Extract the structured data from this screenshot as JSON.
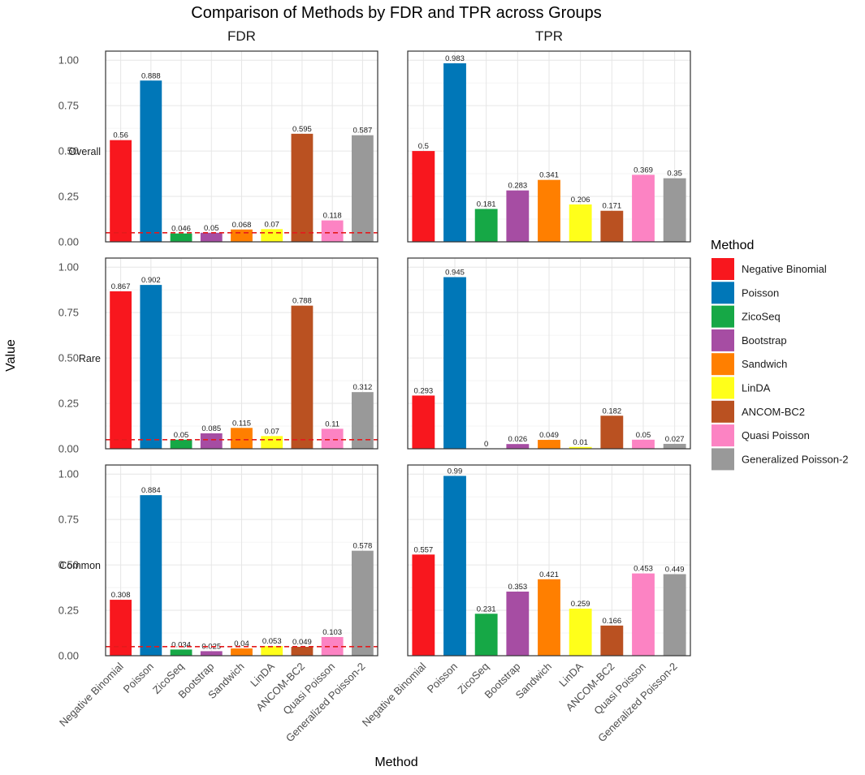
{
  "chart_data": {
    "type": "bar",
    "title": "Comparison of Methods by FDR and TPR across Groups",
    "xlabel": "Method",
    "ylabel": "Value",
    "ylim": [
      0,
      1.05
    ],
    "yticks": [
      "0.00",
      "0.25",
      "0.50",
      "0.75",
      "1.00"
    ],
    "ytick_values": [
      0,
      0.25,
      0.5,
      0.75,
      1.0
    ],
    "reference_line": 0.05,
    "columns": [
      "FDR",
      "TPR"
    ],
    "rows": [
      "Overall",
      "Rare",
      "Common"
    ],
    "categories": [
      "Negative Binomial",
      "Poisson",
      "ZicoSeq",
      "Bootstrap",
      "Sandwich",
      "LinDA",
      "ANCOM-BC2",
      "Quasi Poisson",
      "Generalized Poisson-2"
    ],
    "colors": [
      "#F8171E",
      "#0077B8",
      "#16A846",
      "#A64DA3",
      "#FF7F00",
      "#FFFF1A",
      "#BA5121",
      "#FC83C3",
      "#999999"
    ],
    "legend_title": "Method",
    "panels": [
      {
        "row": "Overall",
        "column": "FDR",
        "values": [
          0.56,
          0.888,
          0.046,
          0.05,
          0.068,
          0.07,
          0.595,
          0.118,
          0.587
        ],
        "labels": [
          "0.56",
          "0.888",
          "0.046",
          "0.05",
          "0.068",
          "0.07",
          "0.595",
          "0.118",
          "0.587"
        ]
      },
      {
        "row": "Overall",
        "column": "TPR",
        "values": [
          0.5,
          0.983,
          0.181,
          0.283,
          0.341,
          0.206,
          0.171,
          0.369,
          0.35
        ],
        "labels": [
          "0.5",
          "0.983",
          "0.181",
          "0.283",
          "0.341",
          "0.206",
          "0.171",
          "0.369",
          "0.35"
        ]
      },
      {
        "row": "Rare",
        "column": "FDR",
        "values": [
          0.867,
          0.902,
          0.05,
          0.085,
          0.115,
          0.07,
          0.788,
          0.11,
          0.312
        ],
        "labels": [
          "0.867",
          "0.902",
          "0.05",
          "0.085",
          "0.115",
          "0.07",
          "0.788",
          "0.11",
          "0.312"
        ]
      },
      {
        "row": "Rare",
        "column": "TPR",
        "values": [
          0.293,
          0.945,
          0,
          0.026,
          0.049,
          0.01,
          0.182,
          0.05,
          0.027
        ],
        "labels": [
          "0.293",
          "0.945",
          "0",
          "0.026",
          "0.049",
          "0.01",
          "0.182",
          "0.05",
          "0.027"
        ]
      },
      {
        "row": "Common",
        "column": "FDR",
        "values": [
          0.308,
          0.884,
          0.034,
          0.025,
          0.04,
          0.053,
          0.049,
          0.103,
          0.578
        ],
        "labels": [
          "0.308",
          "0.884",
          "0.034",
          "0.025",
          "0.04",
          "0.053",
          "0.049",
          "0.103",
          "0.578"
        ]
      },
      {
        "row": "Common",
        "column": "TPR",
        "values": [
          0.557,
          0.99,
          0.231,
          0.353,
          0.421,
          0.259,
          0.166,
          0.453,
          0.449
        ],
        "labels": [
          "0.557",
          "0.99",
          "0.231",
          "0.353",
          "0.421",
          "0.259",
          "0.166",
          "0.453",
          "0.449"
        ]
      }
    ],
    "legend_position": "right"
  }
}
